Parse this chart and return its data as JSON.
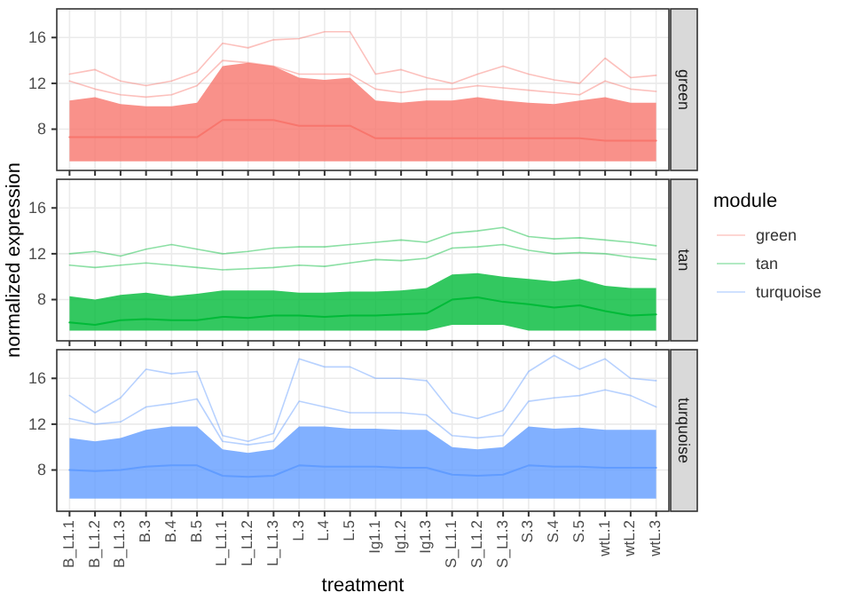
{
  "chart_data": [
    {
      "type": "line",
      "title": "green",
      "categories": [
        null,
        null,
        null,
        null,
        null,
        null,
        null,
        null,
        null,
        null,
        null,
        null,
        null,
        null,
        null,
        null,
        null,
        null,
        null,
        null,
        null,
        null,
        null,
        null
      ],
      "ylim": [
        4.4,
        18.5
      ],
      "yticks": [
        8,
        12,
        16
      ],
      "grid": true,
      "tick_labels": "y",
      "series": [
        {
          "name": "green",
          "color": "#f8766d",
          "values": [
            7.3,
            7.3,
            7.3,
            7.3,
            7.3,
            7.3,
            8.8,
            8.8,
            8.8,
            8.3,
            8.3,
            8.3,
            7.2,
            7.2,
            7.2,
            7.2,
            7.2,
            7.2,
            7.2,
            7.2,
            7.2,
            7.0,
            7.0,
            7.0
          ],
          "lower": [
            5.2,
            5.2,
            5.2,
            5.2,
            5.2,
            5.2,
            5.2,
            5.2,
            5.2,
            5.2,
            5.2,
            5.2,
            5.2,
            5.2,
            5.2,
            5.2,
            5.2,
            5.2,
            5.2,
            5.2,
            5.2,
            5.2,
            5.2,
            5.2
          ],
          "upper": [
            10.5,
            10.8,
            10.2,
            10,
            10,
            10.3,
            13.5,
            13.8,
            13.5,
            12.5,
            12.3,
            12.5,
            10.5,
            10.3,
            10.5,
            10.5,
            10.8,
            10.5,
            10.3,
            10.2,
            10.5,
            10.8,
            10.3,
            10.3
          ]
        },
        {
          "color": "#f8766d",
          "values": [
            12.8,
            13.2,
            12.2,
            11.8,
            12.2,
            13,
            15.5,
            15.1,
            15.8,
            15.9,
            16.5,
            16.5,
            12.8,
            13.2,
            12.5,
            12,
            12.8,
            13.5,
            12.8,
            12.3,
            12,
            14.2,
            12.5,
            12.7
          ]
        },
        {
          "color": "#f8766d",
          "values": [
            12.2,
            11.5,
            11,
            10.8,
            11,
            11.8,
            14,
            13.8,
            13.5,
            12.8,
            12.8,
            12.8,
            11.5,
            11.2,
            11.5,
            11.5,
            11.8,
            11.6,
            11.4,
            11.2,
            11,
            12.2,
            11.5,
            11.3
          ]
        }
      ]
    },
    {
      "type": "line",
      "title": "tan",
      "ylabel": "normalized expression",
      "legend_title": "module",
      "legend": "right",
      "categories": [
        null,
        null,
        null,
        null,
        null,
        null,
        null,
        null,
        null,
        null,
        null,
        null,
        null,
        null,
        null,
        null,
        null,
        null,
        null,
        null,
        null,
        null,
        null,
        null
      ],
      "ylim": [
        4.4,
        18.5
      ],
      "yticks": [
        8,
        12,
        16
      ],
      "grid": true,
      "tick_labels": "y",
      "series": [
        {
          "name": "tan",
          "color": "#00ba38",
          "values": [
            6,
            5.8,
            6.2,
            6.3,
            6.2,
            6.2,
            6.5,
            6.4,
            6.6,
            6.6,
            6.5,
            6.6,
            6.6,
            6.7,
            6.8,
            8,
            8.2,
            7.8,
            7.6,
            7.3,
            7.5,
            7,
            6.6,
            6.7
          ],
          "lower": [
            5.3,
            5.3,
            5.3,
            5.3,
            5.3,
            5.3,
            5.3,
            5.3,
            5.3,
            5.3,
            5.3,
            5.3,
            5.3,
            5.3,
            5.3,
            5.8,
            5.8,
            5.8,
            5.3,
            5.3,
            5.3,
            5.3,
            5.3,
            5.3
          ],
          "upper": [
            8.3,
            8,
            8.4,
            8.6,
            8.3,
            8.5,
            8.8,
            8.8,
            8.8,
            8.6,
            8.6,
            8.7,
            8.7,
            8.8,
            9,
            10.2,
            10.3,
            10,
            9.8,
            9.6,
            9.8,
            9.2,
            9,
            9
          ]
        },
        {
          "color": "#00ba38",
          "values": [
            12,
            12.2,
            11.8,
            12.4,
            12.8,
            12.4,
            12,
            12.2,
            12.5,
            12.6,
            12.6,
            12.8,
            13,
            13.2,
            13,
            13.8,
            14,
            14.3,
            13.5,
            13.3,
            13.4,
            13.2,
            13,
            12.7
          ]
        },
        {
          "color": "#00ba38",
          "values": [
            11,
            10.8,
            11,
            11.2,
            11,
            10.8,
            10.6,
            10.7,
            10.8,
            11,
            10.9,
            11.2,
            11.5,
            11.4,
            11.6,
            12.5,
            12.6,
            12.8,
            12.3,
            12,
            12.1,
            12,
            11.7,
            11.5
          ]
        }
      ]
    },
    {
      "type": "line",
      "title": "turquoise",
      "xlabel": "treatment",
      "categories": [
        "B_L1.1",
        "B_L1.2",
        "B_L1.3",
        "B.3",
        "B.4",
        "B.5",
        "L_L1.1",
        "L_L1.2",
        "L_L1.3",
        "L.3",
        "L.4",
        "L.5",
        "Ig1.1",
        "Ig1.2",
        "Ig1.3",
        "S_L1.1",
        "S_L1.2",
        "S_L1.3",
        "S.3",
        "S.4",
        "S.5",
        "wtL.1",
        "wtL.2",
        "wtL.3"
      ],
      "ylim": [
        4.4,
        18.5
      ],
      "yticks": [
        8,
        12,
        16
      ],
      "grid": true,
      "series": [
        {
          "name": "turquoise",
          "color": "#619cff",
          "values": [
            8,
            7.9,
            8,
            8.3,
            8.4,
            8.4,
            7.5,
            7.4,
            7.5,
            8.4,
            8.3,
            8.3,
            8.3,
            8.2,
            8.2,
            7.6,
            7.5,
            7.6,
            8.4,
            8.3,
            8.3,
            8.2,
            8.2,
            8.2
          ],
          "lower": [
            5.5,
            5.5,
            5.5,
            5.5,
            5.5,
            5.5,
            5.5,
            5.5,
            5.5,
            5.5,
            5.5,
            5.5,
            5.5,
            5.5,
            5.5,
            5.5,
            5.5,
            5.5,
            5.5,
            5.5,
            5.5,
            5.5,
            5.5,
            5.5
          ],
          "upper": [
            10.8,
            10.5,
            10.8,
            11.5,
            11.8,
            11.8,
            9.8,
            9.5,
            9.8,
            11.8,
            11.8,
            11.6,
            11.6,
            11.5,
            11.5,
            10,
            9.8,
            10,
            11.8,
            11.6,
            11.7,
            11.5,
            11.5,
            11.5
          ]
        },
        {
          "color": "#619cff",
          "values": [
            14.5,
            13,
            14.3,
            16.8,
            16.4,
            16.6,
            11,
            10.5,
            11.2,
            17.7,
            17,
            17,
            16,
            16,
            15.8,
            13,
            12.5,
            13.2,
            16.6,
            18,
            16.8,
            17.7,
            16,
            15.8
          ]
        },
        {
          "color": "#619cff",
          "values": [
            12.5,
            12,
            12.2,
            13.5,
            13.8,
            14.2,
            10.5,
            10.2,
            10.5,
            14,
            13.5,
            13,
            13,
            13,
            12.8,
            11,
            10.8,
            11,
            14,
            14.3,
            14.5,
            15,
            14.5,
            13.5
          ]
        }
      ]
    }
  ]
}
